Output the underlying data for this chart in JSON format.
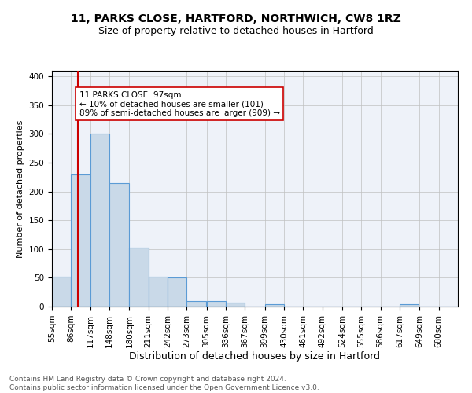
{
  "title_line1": "11, PARKS CLOSE, HARTFORD, NORTHWICH, CW8 1RZ",
  "title_line2": "Size of property relative to detached houses in Hartford",
  "xlabel": "Distribution of detached houses by size in Hartford",
  "ylabel": "Number of detached properties",
  "bin_labels": [
    "55sqm",
    "86sqm",
    "117sqm",
    "148sqm",
    "180sqm",
    "211sqm",
    "242sqm",
    "273sqm",
    "305sqm",
    "336sqm",
    "367sqm",
    "399sqm",
    "430sqm",
    "461sqm",
    "492sqm",
    "524sqm",
    "555sqm",
    "586sqm",
    "617sqm",
    "649sqm",
    "680sqm"
  ],
  "bin_edges": [
    55,
    86,
    117,
    148,
    180,
    211,
    242,
    273,
    305,
    336,
    367,
    399,
    430,
    461,
    492,
    524,
    555,
    586,
    617,
    649,
    680
  ],
  "bar_heights": [
    52,
    230,
    300,
    215,
    103,
    52,
    50,
    10,
    10,
    7,
    0,
    4,
    0,
    0,
    0,
    0,
    0,
    0,
    4,
    0,
    0
  ],
  "bar_color": "#c9d9e8",
  "bar_edge_color": "#5b9bd5",
  "bar_edge_width": 0.8,
  "vline_x": 97,
  "vline_color": "#cc0000",
  "annotation_text": "11 PARKS CLOSE: 97sqm\n← 10% of detached houses are smaller (101)\n89% of semi-detached houses are larger (909) →",
  "annotation_box_color": "white",
  "annotation_box_edgecolor": "#cc0000",
  "ylim": [
    0,
    410
  ],
  "yticks": [
    0,
    50,
    100,
    150,
    200,
    250,
    300,
    350,
    400
  ],
  "grid_color": "#c0c0c0",
  "background_color": "#eef2f9",
  "footer_text": "Contains HM Land Registry data © Crown copyright and database right 2024.\nContains public sector information licensed under the Open Government Licence v3.0.",
  "title_fontsize": 10,
  "subtitle_fontsize": 9,
  "xlabel_fontsize": 9,
  "ylabel_fontsize": 8,
  "tick_fontsize": 7.5,
  "annotation_fontsize": 7.5,
  "footer_fontsize": 6.5
}
